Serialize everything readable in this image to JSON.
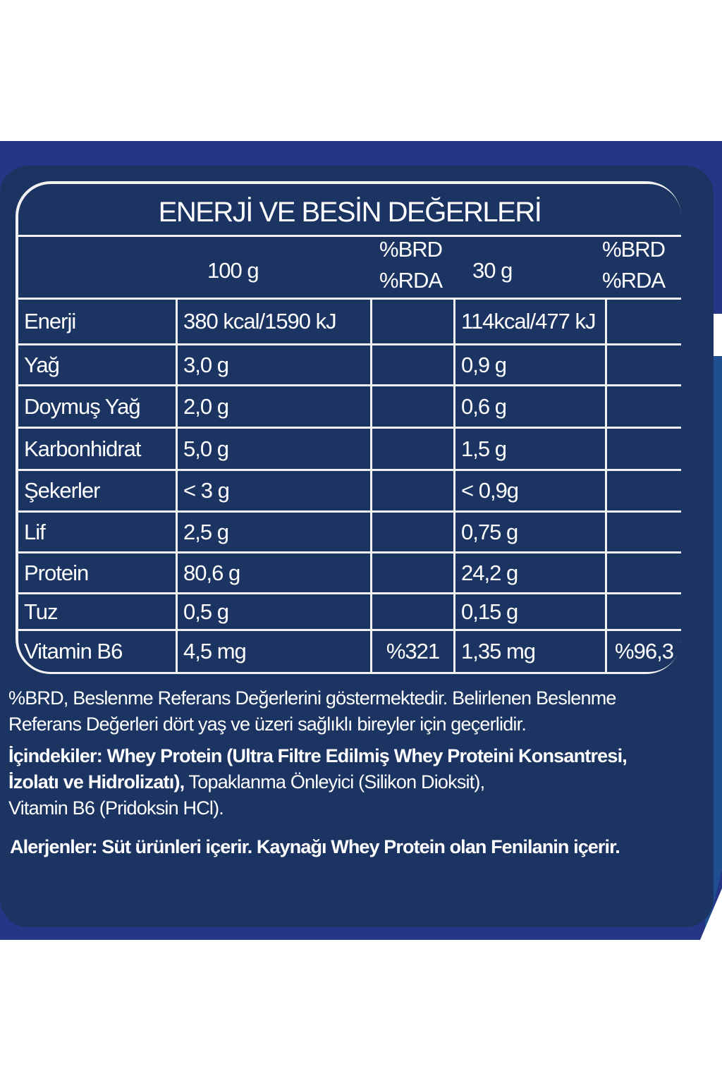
{
  "colors": {
    "band": "#263585",
    "panel": "#1b3461",
    "lines": "#f2f2f2",
    "side_blue": "#1f4f91"
  },
  "title": "ENERJİ VE BESİN DEĞERLERİ",
  "header": {
    "per100": "100 g",
    "rda100_line1": "%BRD",
    "rda100_line2": "%RDA",
    "per30": "30 g",
    "rda30_line1": "%BRD",
    "rda30_line2": "%RDA"
  },
  "rows": [
    {
      "name": "Enerji",
      "per100": "380 kcal/1590 kJ",
      "rda100": "",
      "per30": "114kcal/477 kJ",
      "rda30": ""
    },
    {
      "name": "Yağ",
      "per100": "3,0 g",
      "rda100": "",
      "per30": "0,9 g",
      "rda30": ""
    },
    {
      "name": "Doymuş Yağ",
      "per100": "2,0 g",
      "rda100": "",
      "per30": "0,6 g",
      "rda30": ""
    },
    {
      "name": "Karbonhidrat",
      "per100": "5,0 g",
      "rda100": "",
      "per30": "1,5 g",
      "rda30": ""
    },
    {
      "name": "Şekerler",
      "per100": "< 3 g",
      "rda100": "",
      "per30": "< 0,9g",
      "rda30": ""
    },
    {
      "name": "Lif",
      "per100": "2,5 g",
      "rda100": "",
      "per30": "0,75 g",
      "rda30": ""
    },
    {
      "name": "Protein",
      "per100": "80,6 g",
      "rda100": "",
      "per30": "24,2 g",
      "rda30": ""
    },
    {
      "name": "Tuz",
      "per100": "0,5 g",
      "rda100": "",
      "per30": "0,15 g",
      "rda30": ""
    },
    {
      "name": "Vitamin B6",
      "per100": "4,5 mg",
      "rda100": "%321",
      "per30": "1,35 mg",
      "rda30": "%96,3"
    }
  ],
  "footnote": {
    "line1": "%BRD, Beslenme Referans Değerlerini göstermektedir. Belirlenen Beslenme",
    "line2": "Referans Değerleri dört yaş ve üzeri sağlıklı bireyler için geçerlidir."
  },
  "ingredients": {
    "line1_bold": "İçindekiler: Whey Protein (Ultra Filtre Edilmiş Whey Proteini Konsantresi,",
    "line2_bold": "İzolatı ve Hidrolizatı),",
    "line2_regular": " Topaklanma Önleyici (Silikon Dioksit),",
    "line3": "Vitamin B6 (Pridoksin HCl)."
  },
  "allergens": "Alerjenler: Süt ürünleri içerir. Kaynağı Whey Protein olan Fenilanin içerir."
}
